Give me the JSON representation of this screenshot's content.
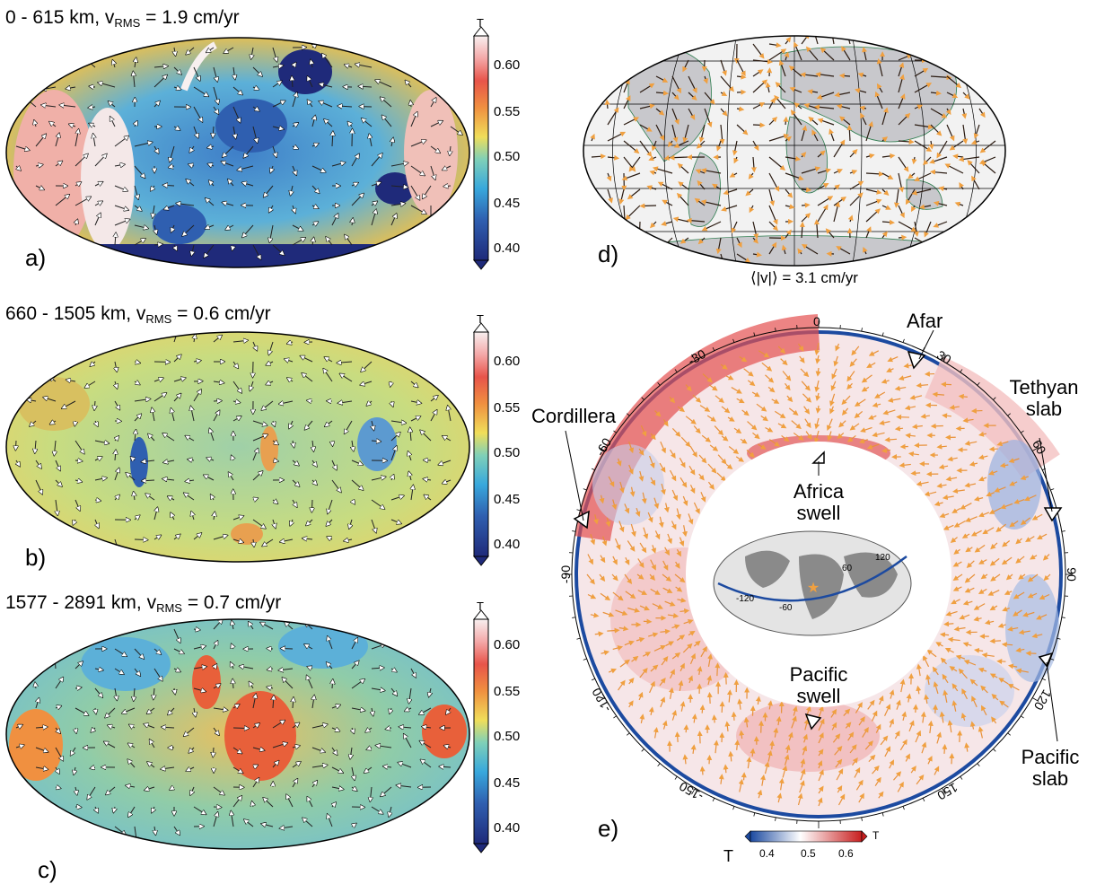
{
  "panels": {
    "a": {
      "letter": "a)",
      "title_pre": "0 - 615 km, v",
      "title_sub": "RMS",
      "title_post": " = 1.9 cm/yr"
    },
    "b": {
      "letter": "b)",
      "title_pre": "660 - 1505 km, v",
      "title_sub": "RMS",
      "title_post": " = 0.6 cm/yr"
    },
    "c": {
      "letter": "c)",
      "title_pre": "1577 - 2891 km, v",
      "title_sub": "RMS",
      "title_post": " = 0.7 cm/yr"
    },
    "d": {
      "letter": "d)",
      "caption": "⟨|v|⟩ = 3.1 cm/yr"
    },
    "e": {
      "letter": "e)",
      "annotations": {
        "afar": "Afar",
        "tethyan": [
          "Tethyan",
          "slab"
        ],
        "cordillera": "Cordillera",
        "africa": [
          "Africa",
          "swell"
        ],
        "pacific_swell": [
          "Pacific",
          "swell"
        ],
        "pacific_slab": [
          "Pacific",
          "slab"
        ]
      },
      "ring_ticks": [
        "0",
        "30",
        "60",
        "90",
        "120",
        "150",
        "-150",
        "-120",
        "-90",
        "-60",
        "-30"
      ],
      "inset_labels": [
        "-120",
        "-60",
        "60",
        "120"
      ],
      "colorbar": {
        "label": "T",
        "end_label": "T",
        "ticks": [
          "0.4",
          "0.5",
          "0.6"
        ]
      }
    }
  },
  "colorbar_vertical": {
    "label": "T",
    "ticks": [
      "0.60",
      "0.55",
      "0.50",
      "0.45",
      "0.40"
    ]
  },
  "colors": {
    "low": "#1f2a7a",
    "mid_low": "#38a8dc",
    "mid": "#f0de5a",
    "mid_high": "#e8544a",
    "high": "#f8f0f0",
    "arrow_orange": "#f0a040"
  }
}
